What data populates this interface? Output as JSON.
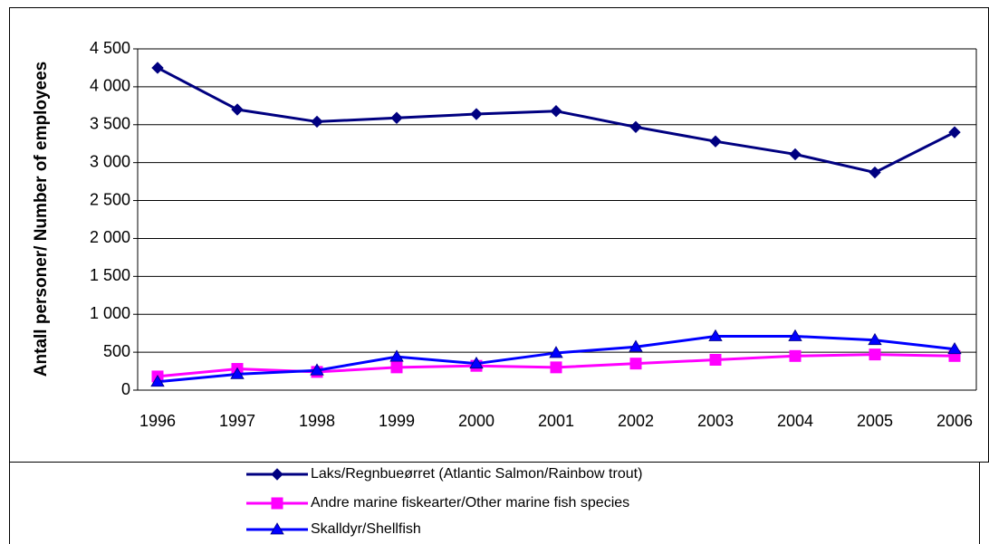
{
  "chart_data": {
    "type": "line",
    "y_label": "Antall personer/ Number of employees",
    "categories": [
      "1996",
      "1997",
      "1998",
      "1999",
      "2000",
      "2001",
      "2002",
      "2003",
      "2004",
      "2005",
      "2006"
    ],
    "series": [
      {
        "name": "Laks/Regnbueørret (Atlantic Salmon/Rainbow trout)",
        "color": "#000080",
        "marker": "diamond",
        "values": [
          4250,
          3700,
          3540,
          3590,
          3640,
          3680,
          3470,
          3280,
          3110,
          2870,
          3400
        ]
      },
      {
        "name": "Andre marine fiskearter/Other marine fish species",
        "color": "#ff00ff",
        "marker": "square",
        "values": [
          180,
          280,
          240,
          300,
          320,
          300,
          350,
          400,
          450,
          470,
          450
        ]
      },
      {
        "name": "Skalldyr/Shellfish",
        "color": "#0000ff",
        "marker": "triangle",
        "values": [
          110,
          210,
          260,
          440,
          350,
          490,
          570,
          710,
          710,
          660,
          540
        ]
      }
    ],
    "ylim": [
      0,
      4500
    ],
    "yticks": [
      0,
      500,
      {
        "value": 1000,
        "label": "1 000"
      },
      {
        "value": 1500,
        "label": "1 500"
      },
      {
        "value": 2000,
        "label": "2 000"
      },
      {
        "value": 2500,
        "label": "2 500"
      },
      {
        "value": 3000,
        "label": "3 000"
      },
      {
        "value": 3500,
        "label": "3 500"
      },
      {
        "value": 4000,
        "label": "4 000"
      },
      {
        "value": 4500,
        "label": "4 500"
      }
    ],
    "grid": true,
    "legend": "bottom"
  }
}
